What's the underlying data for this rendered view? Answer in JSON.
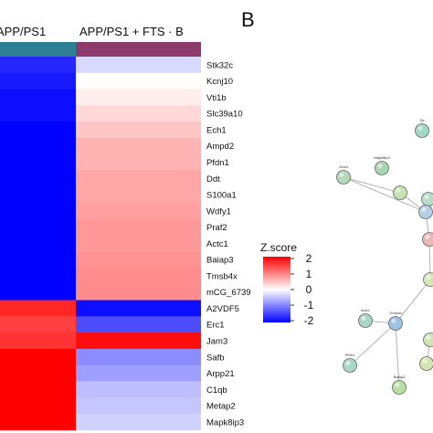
{
  "panel_b_letter": "B",
  "chart_data": [
    {
      "type": "heatmap",
      "column_groups": [
        {
          "label": "APP/PS1",
          "color": "#2f7f92"
        },
        {
          "label": "APP/PS1 + FTS · B",
          "color": "#8c3a6c"
        }
      ],
      "genes": [
        "Stk32c",
        "Kcnj10",
        "Vti1b",
        "Slc39a10",
        "Ech1",
        "Ampd2",
        "Pfdn1",
        "Ddt",
        "S100a1",
        "Wdfy1",
        "Praf2",
        "Actc1",
        "Baiap3",
        "Tmsb4x",
        "mCG_6739",
        "A2VDF5",
        "Erc1",
        "Jam3",
        "Safb",
        "Arpp21",
        "C1qb",
        "Metap2",
        "Mapk8ip3"
      ],
      "values": [
        [
          -1.7,
          -0.3
        ],
        [
          -1.8,
          0.02
        ],
        [
          -1.9,
          0.15
        ],
        [
          -1.9,
          0.3
        ],
        [
          -2.0,
          0.45
        ],
        [
          -2.0,
          0.6
        ],
        [
          -2.0,
          0.6
        ],
        [
          -2.0,
          0.7
        ],
        [
          -2.0,
          0.7
        ],
        [
          -2.0,
          0.75
        ],
        [
          -2.0,
          0.8
        ],
        [
          -2.0,
          0.8
        ],
        [
          -2.0,
          0.85
        ],
        [
          -2.0,
          0.9
        ],
        [
          -2.0,
          0.9
        ],
        [
          1.7,
          -1.9
        ],
        [
          1.5,
          -1.4
        ],
        [
          1.6,
          1.9
        ],
        [
          2.0,
          -0.9
        ],
        [
          2.0,
          -0.75
        ],
        [
          2.0,
          -0.5
        ],
        [
          2.0,
          -0.45
        ],
        [
          2.0,
          -0.35
        ]
      ],
      "colorscale": {
        "low": "#0000ff",
        "mid": "#ffffff",
        "high": "#ff0000",
        "range": [
          -2,
          2
        ]
      },
      "legend": {
        "title": "Z.score",
        "ticks": [
          "2",
          "1",
          "0",
          "-1",
          "-2"
        ]
      }
    },
    {
      "type": "network",
      "nodes": [
        {
          "id": "Sa",
          "label": "Sa",
          "color": "#9ed9c4"
        },
        {
          "id": "Mapk8ip3",
          "label": "Mapk8ip3",
          "color": "#a8d6b0"
        },
        {
          "id": "Gna3",
          "label": "Gna3",
          "color": "#b3d9b8"
        },
        {
          "id": "n4",
          "label": "",
          "color": "#c4e3b0"
        },
        {
          "id": "n5",
          "label": "",
          "color": "#b7ddc9"
        },
        {
          "id": "n6",
          "label": "",
          "color": "#b6cfe6"
        },
        {
          "id": "n7",
          "label": "",
          "color": "#e9b8b8"
        },
        {
          "id": "n8",
          "label": "",
          "color": "#d6e6b6"
        },
        {
          "id": "Actc1",
          "label": "Actc1",
          "color": "#a9d3c7"
        },
        {
          "id": "Tmsb4x",
          "label": "Tmsb4x",
          "color": "#9cc3e3"
        },
        {
          "id": "Pfdn1",
          "label": "Pfdn1",
          "color": "#a9d8c8"
        },
        {
          "id": "Baiap3",
          "label": "Baiap3",
          "color": "#b7e0a6"
        },
        {
          "id": "n13",
          "label": "",
          "color": "#d6e6b2"
        },
        {
          "id": "n14",
          "label": "",
          "color": "#cfe3b6"
        }
      ],
      "edges": [
        [
          "Gna3",
          "n4"
        ],
        [
          "n4",
          "n6"
        ],
        [
          "Gna3",
          "n6"
        ],
        [
          "n5",
          "n6"
        ],
        [
          "n6",
          "n7"
        ],
        [
          "n7",
          "n8"
        ],
        [
          "n8",
          "Tmsb4x"
        ],
        [
          "Actc1",
          "Tmsb4x"
        ],
        [
          "Tmsb4x",
          "Pfdn1"
        ],
        [
          "Tmsb4x",
          "Baiap3"
        ],
        [
          "n13",
          "n14"
        ]
      ]
    }
  ]
}
